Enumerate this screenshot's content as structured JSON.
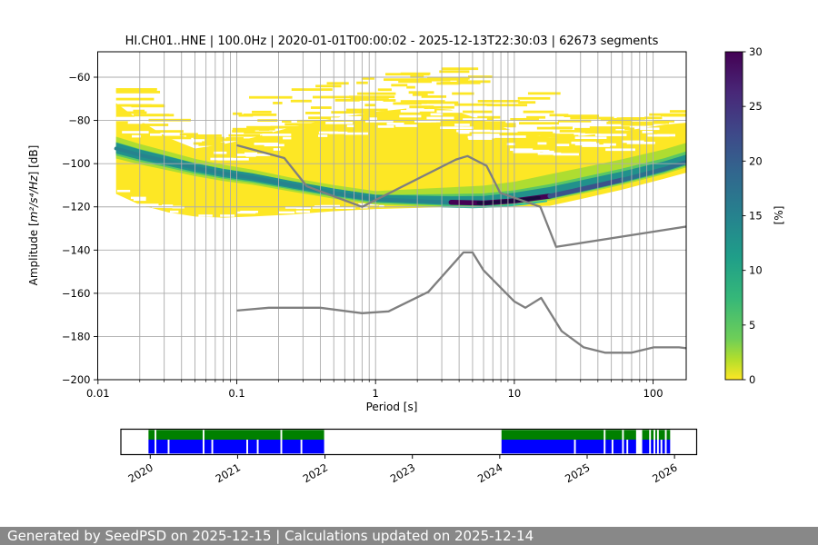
{
  "header": {
    "title": "HI.CH01..HNE | 100.0Hz | 2020-01-01T00:00:02 - 2025-12-13T22:30:03 | 62673 segments",
    "meta": {
      "station_id": "HI.CH01..HNE",
      "sampling_rate": "100.0Hz",
      "start_time": "2020-01-01T00:00:02",
      "end_time": "2025-12-13T22:30:03",
      "segments": "62673 segments"
    }
  },
  "footer": {
    "text": "Generated by SeedPSD on 2025-12-15 | Calculations updated on 2025-12-14",
    "background": "#888888"
  },
  "chart_data": [
    {
      "type": "heatmap",
      "title": "HI.CH01..HNE | 100.0Hz | 2020-01-01T00:00:02 - 2025-12-13T22:30:03 | 62673 segments",
      "xlabel": "Period [s]",
      "ylabel": "Amplitude [m²/s⁴/Hz] [dB]",
      "ylabel_parts": {
        "prefix": "Amplitude [",
        "math": "m²/s⁴/Hz",
        "suffix": "] [dB]"
      },
      "x_scale": "log",
      "xlim": [
        0.01,
        180
      ],
      "ylim": [
        -200,
        -48
      ],
      "grid": true,
      "x_ticks": [
        "0.01",
        "0.1",
        "1",
        "10",
        "100"
      ],
      "x_tick_values": [
        0.01,
        0.1,
        1,
        10,
        100
      ],
      "y_ticks": [
        "−60",
        "−80",
        "−100",
        "−120",
        "−140",
        "−160",
        "−180",
        "−200"
      ],
      "y_tick_values": [
        -60,
        -80,
        -100,
        -120,
        -140,
        -160,
        -180,
        -200
      ],
      "colorbar": {
        "label": "[%]",
        "range": [
          0,
          30
        ],
        "ticks": [
          "0",
          "5",
          "10",
          "15",
          "20",
          "25",
          "30"
        ],
        "tick_values": [
          0,
          5,
          10,
          15,
          20,
          25,
          30
        ],
        "colormap": "viridis_r (0%=yellow #fde725, 30%=dark purple #440154)"
      },
      "psd_histogram": {
        "comment": "envelopes of the 2D PPSD histogram read from the plot",
        "periods_s": [
          0.0135,
          0.02,
          0.032,
          0.05,
          0.08,
          0.13,
          0.25,
          0.5,
          1,
          2,
          3.5,
          6,
          10,
          18,
          32,
          60,
          120,
          177
        ],
        "max_db": [
          -62,
          -70,
          -78,
          -83,
          -80,
          -72,
          -64,
          -59,
          -57,
          -56,
          -56,
          -57,
          -60,
          -68,
          -78,
          -79,
          -77,
          -74
        ],
        "solid_top_db": [
          -72,
          -80,
          -88,
          -93,
          -91,
          -88,
          -83,
          -79,
          -76,
          -74,
          -75,
          -80,
          -85,
          -88,
          -87,
          -85,
          -82,
          -81
        ],
        "mode_db": [
          -93,
          -96,
          -99,
          -102,
          -104.5,
          -106.5,
          -110,
          -113.5,
          -116.5,
          -117.3,
          -117.9,
          -118.2,
          -117.2,
          -115,
          -111.5,
          -107.5,
          -102.5,
          -99
        ],
        "min_db": [
          -114,
          -119,
          -122.5,
          -124.5,
          -125,
          -124.5,
          -123.5,
          -122,
          -121,
          -120.5,
          -120,
          -119.8,
          -119.8,
          -119.5,
          -116,
          -112,
          -107,
          -104
        ]
      },
      "noise_models": {
        "name": "Peterson (1993) NHNM / NLNM reference curves (gray)",
        "nhnm": [
          [
            0.1,
            -91.5
          ],
          [
            0.22,
            -97.4
          ],
          [
            0.32,
            -110.5
          ],
          [
            0.8,
            -120.0
          ],
          [
            3.8,
            -98.1
          ],
          [
            4.6,
            -96.5
          ],
          [
            6.3,
            -101.0
          ],
          [
            7.9,
            -113.5
          ],
          [
            15.4,
            -120.0
          ],
          [
            20.0,
            -138.5
          ],
          [
            354.8,
            -126.0
          ]
        ],
        "nlnm": [
          [
            0.1,
            -168.0
          ],
          [
            0.17,
            -166.7
          ],
          [
            0.4,
            -166.7
          ],
          [
            0.8,
            -169.2
          ],
          [
            1.24,
            -168.35
          ],
          [
            2.4,
            -159.34
          ],
          [
            4.3,
            -141.1
          ],
          [
            5.0,
            -141.1
          ],
          [
            6.0,
            -149.36
          ],
          [
            10.0,
            -163.79
          ],
          [
            12.0,
            -166.7
          ],
          [
            15.6,
            -162.13
          ],
          [
            21.9,
            -177.5
          ],
          [
            31.6,
            -185.0
          ],
          [
            45.0,
            -187.5
          ],
          [
            70.0,
            -187.5
          ],
          [
            101.0,
            -185.0
          ],
          [
            154.0,
            -185.0
          ],
          [
            328.0,
            -187.5
          ]
        ]
      }
    },
    {
      "type": "timeline",
      "years": [
        "2020",
        "2021",
        "2022",
        "2023",
        "2024",
        "2025",
        "2026"
      ],
      "year_values": [
        2020,
        2021,
        2022,
        2023,
        2024,
        2025,
        2026
      ],
      "bands": [
        {
          "name": "coverage-green",
          "color": "#008000",
          "runs": [
            [
              2019.98,
              2021.99
            ],
            [
              2024.02,
              2025.95
            ]
          ],
          "gaps": [
            [
              2020.05,
              2020.07
            ],
            [
              2020.6,
              2020.62
            ],
            [
              2021.49,
              2021.51
            ],
            [
              2025.19,
              2025.21
            ],
            [
              2025.4,
              2025.42
            ],
            [
              2025.56,
              2025.63
            ],
            [
              2025.71,
              2025.73
            ],
            [
              2025.76,
              2025.78
            ],
            [
              2025.8,
              2025.82
            ],
            [
              2025.89,
              2025.91
            ]
          ]
        },
        {
          "name": "coverage-blue",
          "color": "#0000ff",
          "runs": [
            [
              2019.98,
              2021.99
            ],
            [
              2024.02,
              2025.95
            ]
          ],
          "gaps": [
            [
              2020.05,
              2020.07
            ],
            [
              2020.2,
              2020.22
            ],
            [
              2020.6,
              2020.62
            ],
            [
              2020.7,
              2020.72
            ],
            [
              2021.1,
              2021.12
            ],
            [
              2021.22,
              2021.24
            ],
            [
              2021.49,
              2021.51
            ],
            [
              2021.72,
              2021.74
            ],
            [
              2024.85,
              2024.87
            ],
            [
              2025.19,
              2025.21
            ],
            [
              2025.28,
              2025.3
            ],
            [
              2025.4,
              2025.42
            ],
            [
              2025.45,
              2025.47
            ],
            [
              2025.56,
              2025.63
            ],
            [
              2025.71,
              2025.73
            ],
            [
              2025.76,
              2025.78
            ],
            [
              2025.8,
              2025.82
            ],
            [
              2025.84,
              2025.86
            ],
            [
              2025.89,
              2025.91
            ]
          ]
        }
      ]
    }
  ]
}
